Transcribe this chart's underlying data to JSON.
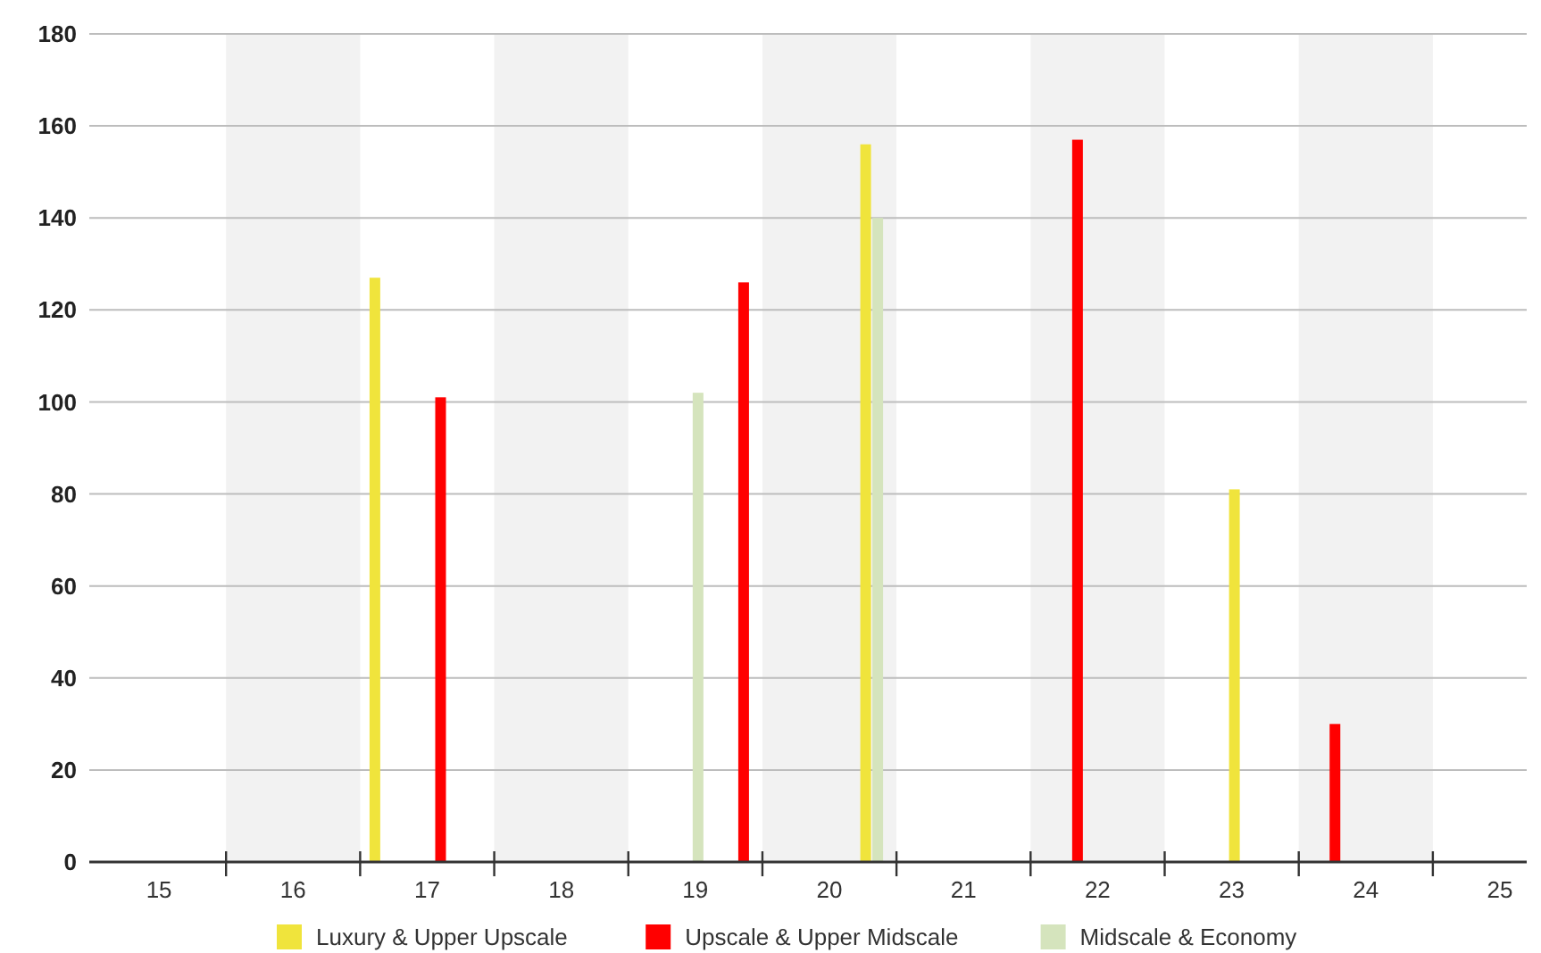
{
  "chart_data": {
    "type": "bar",
    "series": [
      {
        "name": "Luxury & Upper Upscale",
        "color": "#f0e43c",
        "x": [
          16.61,
          20.27,
          23.02
        ],
        "values": [
          127,
          156,
          81
        ]
      },
      {
        "name": "Upscale & Upper Midscale",
        "color": "#ff0000",
        "x": [
          17.1,
          19.36,
          21.85,
          23.77
        ],
        "values": [
          101,
          126,
          157,
          30
        ]
      },
      {
        "name": "Midscale & Economy",
        "color": "#d5e4bd",
        "x": [
          19.02,
          20.36
        ],
        "values": [
          102,
          140
        ]
      }
    ],
    "xlim": [
      14.48,
      25.2
    ],
    "xticks": [
      15,
      16,
      17,
      18,
      19,
      20,
      21,
      22,
      23,
      24,
      25,
      {
        "value": 15.5,
        "label": null
      },
      {
        "value": 16.5,
        "label": null
      },
      {
        "value": 17.5,
        "label": null
      },
      {
        "value": 18.5,
        "label": null
      },
      {
        "value": 19.5,
        "label": null
      },
      {
        "value": 20.5,
        "label": null
      },
      {
        "value": 21.5,
        "label": null
      },
      {
        "value": 22.5,
        "label": null
      },
      {
        "value": 23.5,
        "label": null
      },
      {
        "value": 24.5,
        "label": null
      }
    ],
    "ylim": [
      0,
      180
    ],
    "yticks": [
      0,
      20,
      40,
      60,
      80,
      100,
      120,
      140,
      160,
      180
    ],
    "bands": [
      {
        "axis": "x",
        "from": 15.5,
        "to": 16.5,
        "color": "#f2f2f2"
      },
      {
        "axis": "x",
        "from": 17.5,
        "to": 18.5,
        "color": "#f2f2f2"
      },
      {
        "axis": "x",
        "from": 19.5,
        "to": 20.5,
        "color": "#f2f2f2"
      },
      {
        "axis": "x",
        "from": 21.5,
        "to": 22.5,
        "color": "#f2f2f2"
      },
      {
        "axis": "x",
        "from": 23.5,
        "to": 24.5,
        "color": "#f2f2f2"
      }
    ],
    "grid": "y",
    "legend": "bottom"
  }
}
